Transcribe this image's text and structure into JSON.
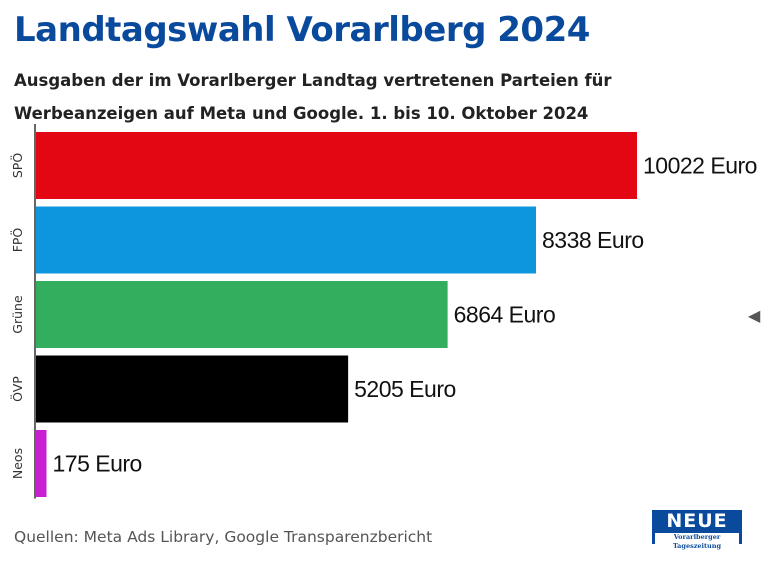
{
  "header": {
    "title": "Landtagswahl Vorarlberg 2024",
    "subtitle": "Ausgaben der im Vorarlberger Landtag vertretenen Parteien für Werbeanzeigen auf Meta und Google. 1. bis 10. Oktober 2024"
  },
  "colors": {
    "title": "#0a4a9c",
    "axis": "#333333"
  },
  "chart_data": {
    "type": "bar",
    "orientation": "horizontal",
    "title": "Landtagswahl Vorarlberg 2024",
    "xlabel": "",
    "ylabel": "",
    "unit": "Euro",
    "xlim": [
      0,
      10022
    ],
    "categories": [
      "SPÖ",
      "FPÖ",
      "Grüne",
      "ÖVP",
      "Neos"
    ],
    "values": [
      10022,
      8338,
      6864,
      5205,
      175
    ],
    "value_labels": [
      "10022 Euro",
      "8338 Euro",
      "6864 Euro",
      "5205 Euro",
      "175 Euro"
    ],
    "colors": [
      "#e30613",
      "#0d96dc",
      "#33ae5f",
      "#000000",
      "#c71fd1"
    ],
    "grid": false
  },
  "footer": {
    "source": "Quellen: Meta Ads Library, Google Transparenzbericht",
    "logo_name": "NEUE",
    "logo_tagline": "Vorarlberger Tageszeitung",
    "arrow_icon": "triangle-left-icon"
  }
}
